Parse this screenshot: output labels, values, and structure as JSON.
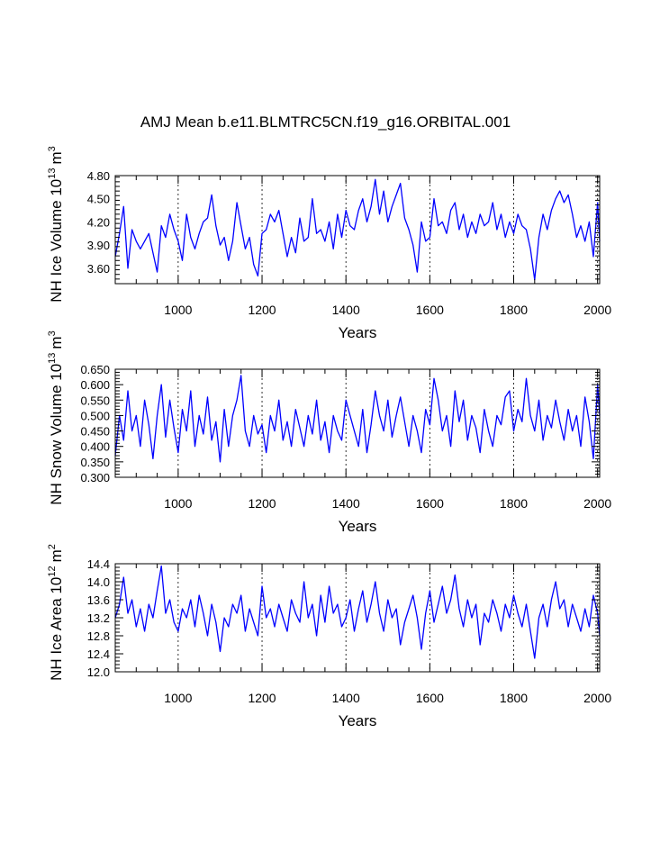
{
  "figure": {
    "title": "AMJ Mean b.e11.BLMTRC5CN.f19_g16.ORBITAL.001",
    "line_color": "#0000ff"
  },
  "chart_data": [
    {
      "type": "line",
      "name": "ice-volume",
      "xlabel": "Years",
      "ylabel_main": "NH Ice Volume 10",
      "ylabel_exp": "13",
      "ylabel_unit": "m",
      "ylabel_unit_exp": "3",
      "xlim": [
        850,
        2005
      ],
      "ylim": [
        3.4,
        4.8
      ],
      "xticks": [
        1000,
        1200,
        1400,
        1600,
        1800,
        2000
      ],
      "xtick_labels": [
        "1000",
        "1200",
        "1400",
        "1600",
        "1800",
        "2000"
      ],
      "yticks": [
        3.6,
        3.9,
        4.2,
        4.5,
        4.8
      ],
      "ytick_labels": [
        "3.60",
        "3.90",
        "4.20",
        "4.50",
        "4.80"
      ],
      "grid_x": "dotted",
      "series": [
        {
          "name": "NH Ice Volume",
          "x": [
            850,
            860,
            870,
            880,
            890,
            900,
            910,
            920,
            930,
            940,
            950,
            960,
            970,
            980,
            990,
            1000,
            1010,
            1020,
            1030,
            1040,
            1050,
            1060,
            1070,
            1080,
            1090,
            1100,
            1110,
            1120,
            1130,
            1140,
            1150,
            1160,
            1170,
            1180,
            1190,
            1200,
            1210,
            1220,
            1230,
            1240,
            1250,
            1260,
            1270,
            1280,
            1290,
            1300,
            1310,
            1320,
            1330,
            1340,
            1350,
            1360,
            1370,
            1380,
            1390,
            1400,
            1410,
            1420,
            1430,
            1440,
            1450,
            1460,
            1470,
            1480,
            1490,
            1500,
            1510,
            1520,
            1530,
            1540,
            1550,
            1560,
            1570,
            1580,
            1590,
            1600,
            1610,
            1620,
            1630,
            1640,
            1650,
            1660,
            1670,
            1680,
            1690,
            1700,
            1710,
            1720,
            1730,
            1740,
            1750,
            1760,
            1770,
            1780,
            1790,
            1800,
            1810,
            1820,
            1830,
            1840,
            1850,
            1860,
            1870,
            1880,
            1890,
            1900,
            1910,
            1920,
            1930,
            1940,
            1950,
            1960,
            1970,
            1980,
            1990,
            2000,
            2005
          ],
          "values": [
            3.75,
            4.05,
            4.4,
            3.6,
            4.1,
            3.95,
            3.85,
            3.95,
            4.05,
            3.8,
            3.55,
            4.15,
            4.0,
            4.3,
            4.1,
            3.95,
            3.7,
            4.3,
            4.0,
            3.85,
            4.05,
            4.2,
            4.25,
            4.55,
            4.15,
            3.9,
            4.0,
            3.7,
            3.95,
            4.45,
            4.15,
            3.85,
            4.0,
            3.65,
            3.5,
            4.05,
            4.1,
            4.3,
            4.2,
            4.35,
            4.05,
            3.75,
            4.0,
            3.8,
            4.25,
            3.95,
            4.0,
            4.5,
            4.05,
            4.1,
            3.95,
            4.2,
            3.85,
            4.3,
            4.0,
            4.35,
            4.15,
            4.1,
            4.35,
            4.5,
            4.2,
            4.4,
            4.75,
            4.3,
            4.6,
            4.2,
            4.4,
            4.55,
            4.7,
            4.25,
            4.1,
            3.9,
            3.55,
            4.2,
            3.95,
            4.0,
            4.5,
            4.15,
            4.2,
            4.05,
            4.35,
            4.45,
            4.1,
            4.3,
            4.0,
            4.2,
            4.05,
            4.3,
            4.15,
            4.2,
            4.45,
            4.1,
            4.3,
            4.0,
            4.2,
            4.05,
            4.3,
            4.15,
            4.1,
            3.85,
            3.45,
            4.0,
            4.3,
            4.1,
            4.35,
            4.5,
            4.6,
            4.45,
            4.55,
            4.3,
            4.0,
            4.15,
            3.95,
            4.2,
            3.75,
            4.45,
            3.95
          ]
        }
      ]
    },
    {
      "type": "line",
      "name": "snow-volume",
      "xlabel": "Years",
      "ylabel_main": "NH Snow Volume 10",
      "ylabel_exp": "13",
      "ylabel_unit": "m",
      "ylabel_unit_exp": "3",
      "xlim": [
        850,
        2005
      ],
      "ylim": [
        0.3,
        0.65
      ],
      "xticks": [
        1000,
        1200,
        1400,
        1600,
        1800,
        2000
      ],
      "xtick_labels": [
        "1000",
        "1200",
        "1400",
        "1600",
        "1800",
        "2000"
      ],
      "yticks": [
        0.3,
        0.35,
        0.4,
        0.45,
        0.5,
        0.55,
        0.6,
        0.65
      ],
      "ytick_labels": [
        "0.300",
        "0.350",
        "0.400",
        "0.450",
        "0.500",
        "0.550",
        "0.600",
        "0.650"
      ],
      "grid_x": "dotted",
      "series": [
        {
          "name": "NH Snow Volume",
          "x": [
            850,
            860,
            870,
            880,
            890,
            900,
            910,
            920,
            930,
            940,
            950,
            960,
            970,
            980,
            990,
            1000,
            1010,
            1020,
            1030,
            1040,
            1050,
            1060,
            1070,
            1080,
            1090,
            1100,
            1110,
            1120,
            1130,
            1140,
            1150,
            1160,
            1170,
            1180,
            1190,
            1200,
            1210,
            1220,
            1230,
            1240,
            1250,
            1260,
            1270,
            1280,
            1290,
            1300,
            1310,
            1320,
            1330,
            1340,
            1350,
            1360,
            1370,
            1380,
            1390,
            1400,
            1410,
            1420,
            1430,
            1440,
            1450,
            1460,
            1470,
            1480,
            1490,
            1500,
            1510,
            1520,
            1530,
            1540,
            1550,
            1560,
            1570,
            1580,
            1590,
            1600,
            1610,
            1620,
            1630,
            1640,
            1650,
            1660,
            1670,
            1680,
            1690,
            1700,
            1710,
            1720,
            1730,
            1740,
            1750,
            1760,
            1770,
            1780,
            1790,
            1800,
            1810,
            1820,
            1830,
            1840,
            1850,
            1860,
            1870,
            1880,
            1890,
            1900,
            1910,
            1920,
            1930,
            1940,
            1950,
            1960,
            1970,
            1980,
            1990,
            2000,
            2005
          ],
          "values": [
            0.37,
            0.5,
            0.42,
            0.58,
            0.45,
            0.5,
            0.4,
            0.55,
            0.47,
            0.36,
            0.5,
            0.6,
            0.43,
            0.55,
            0.46,
            0.38,
            0.52,
            0.45,
            0.58,
            0.4,
            0.5,
            0.44,
            0.56,
            0.42,
            0.48,
            0.35,
            0.52,
            0.4,
            0.5,
            0.55,
            0.63,
            0.45,
            0.4,
            0.5,
            0.44,
            0.47,
            0.38,
            0.5,
            0.45,
            0.55,
            0.42,
            0.48,
            0.4,
            0.52,
            0.46,
            0.4,
            0.5,
            0.44,
            0.55,
            0.42,
            0.48,
            0.38,
            0.5,
            0.45,
            0.42,
            0.55,
            0.5,
            0.45,
            0.4,
            0.52,
            0.38,
            0.47,
            0.58,
            0.5,
            0.45,
            0.55,
            0.43,
            0.5,
            0.56,
            0.48,
            0.4,
            0.5,
            0.45,
            0.38,
            0.52,
            0.47,
            0.62,
            0.55,
            0.45,
            0.5,
            0.4,
            0.58,
            0.48,
            0.55,
            0.42,
            0.5,
            0.46,
            0.38,
            0.52,
            0.45,
            0.4,
            0.5,
            0.47,
            0.56,
            0.58,
            0.45,
            0.52,
            0.48,
            0.62,
            0.5,
            0.45,
            0.55,
            0.42,
            0.5,
            0.46,
            0.55,
            0.48,
            0.42,
            0.52,
            0.45,
            0.5,
            0.4,
            0.56,
            0.48,
            0.36,
            0.6,
            0.5
          ]
        }
      ]
    },
    {
      "type": "line",
      "name": "ice-area",
      "xlabel": "Years",
      "ylabel_main": "NH Ice Area 10",
      "ylabel_exp": "12",
      "ylabel_unit": "m",
      "ylabel_unit_exp": "2",
      "xlim": [
        850,
        2005
      ],
      "ylim": [
        12.0,
        14.4
      ],
      "xticks": [
        1000,
        1200,
        1400,
        1600,
        1800,
        2000
      ],
      "xtick_labels": [
        "1000",
        "1200",
        "1400",
        "1600",
        "1800",
        "2000"
      ],
      "yticks": [
        12.0,
        12.4,
        12.8,
        13.2,
        13.6,
        14.0,
        14.4
      ],
      "ytick_labels": [
        "12.0",
        "12.4",
        "12.8",
        "13.2",
        "13.6",
        "14.0",
        "14.4"
      ],
      "grid_x": "dotted",
      "series": [
        {
          "name": "NH Ice Area",
          "x": [
            850,
            860,
            870,
            880,
            890,
            900,
            910,
            920,
            930,
            940,
            950,
            960,
            970,
            980,
            990,
            1000,
            1010,
            1020,
            1030,
            1040,
            1050,
            1060,
            1070,
            1080,
            1090,
            1100,
            1110,
            1120,
            1130,
            1140,
            1150,
            1160,
            1170,
            1180,
            1190,
            1200,
            1210,
            1220,
            1230,
            1240,
            1250,
            1260,
            1270,
            1280,
            1290,
            1300,
            1310,
            1320,
            1330,
            1340,
            1350,
            1360,
            1370,
            1380,
            1390,
            1400,
            1410,
            1420,
            1430,
            1440,
            1450,
            1460,
            1470,
            1480,
            1490,
            1500,
            1510,
            1520,
            1530,
            1540,
            1550,
            1560,
            1570,
            1580,
            1590,
            1600,
            1610,
            1620,
            1630,
            1640,
            1650,
            1660,
            1670,
            1680,
            1690,
            1700,
            1710,
            1720,
            1730,
            1740,
            1750,
            1760,
            1770,
            1780,
            1790,
            1800,
            1810,
            1820,
            1830,
            1840,
            1850,
            1860,
            1870,
            1880,
            1890,
            1900,
            1910,
            1920,
            1930,
            1940,
            1950,
            1960,
            1970,
            1980,
            1990,
            2000,
            2005
          ],
          "values": [
            13.2,
            13.5,
            14.1,
            13.3,
            13.6,
            13.0,
            13.4,
            12.9,
            13.5,
            13.2,
            13.8,
            14.35,
            13.3,
            13.6,
            13.1,
            12.9,
            13.4,
            13.2,
            13.6,
            13.0,
            13.7,
            13.3,
            12.8,
            13.5,
            13.1,
            12.45,
            13.2,
            13.0,
            13.5,
            13.3,
            13.7,
            12.9,
            13.4,
            13.1,
            12.8,
            13.9,
            13.2,
            13.4,
            13.0,
            13.5,
            13.2,
            12.9,
            13.6,
            13.3,
            13.1,
            14.0,
            13.2,
            13.5,
            12.8,
            13.7,
            13.1,
            13.9,
            13.3,
            13.5,
            13.0,
            13.2,
            13.6,
            12.9,
            13.4,
            13.8,
            13.1,
            13.5,
            14.0,
            13.3,
            12.9,
            13.6,
            13.2,
            13.4,
            12.6,
            13.1,
            13.4,
            13.7,
            13.2,
            12.5,
            13.3,
            13.8,
            13.1,
            13.5,
            13.9,
            13.3,
            13.6,
            14.15,
            13.4,
            13.0,
            13.6,
            13.2,
            13.5,
            12.6,
            13.3,
            13.1,
            13.6,
            13.3,
            12.9,
            13.5,
            13.2,
            13.7,
            13.3,
            13.0,
            13.5,
            12.9,
            12.3,
            13.2,
            13.5,
            13.0,
            13.6,
            14.0,
            13.4,
            13.6,
            13.0,
            13.5,
            13.2,
            12.9,
            13.4,
            13.0,
            13.7,
            13.3,
            12.8
          ]
        }
      ]
    }
  ]
}
